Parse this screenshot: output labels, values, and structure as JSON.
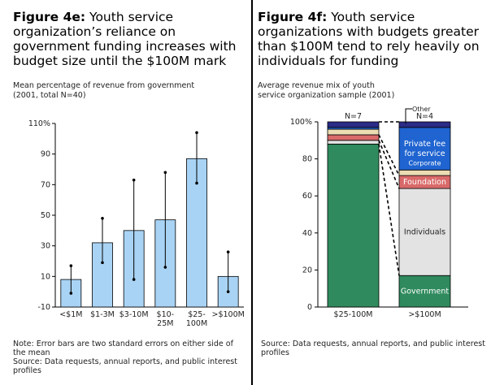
{
  "left": {
    "fig_label": "Figure 4e:",
    "title": "Youth service organization’s reliance on government funding increases with budget size until the $100M mark",
    "subtitle_1": "Mean percentage of revenue from government",
    "subtitle_2": "(2001, total N=40)",
    "note_1": "Note: Error bars are two standard errors on either side of",
    "note_2": "the mean",
    "source_1": "Source: Data requests, annual reports, and public interest",
    "source_2": "profiles"
  },
  "right": {
    "fig_label": "Figure 4f:",
    "title": "Youth service organizations with budgets greater than $100M tend to rely heavily on individuals for funding",
    "subtitle_1": "Average revenue mix of youth",
    "subtitle_2": "service organization sample (2001)",
    "source_1": "Source: Data requests, annual reports, and public interest",
    "source_2": "profiles"
  },
  "chart_data": [
    {
      "type": "bar",
      "categories": [
        "<$1M",
        "$1-3M",
        "$3-10M",
        "$10-25M",
        "$25-100M",
        ">$100M"
      ],
      "category_lines": [
        [
          "<$1M"
        ],
        [
          "$1-3M"
        ],
        [
          "$3-10M"
        ],
        [
          "$10-",
          "25M"
        ],
        [
          "$25-",
          "100M"
        ],
        [
          ">$100M"
        ]
      ],
      "values": [
        8,
        32,
        40,
        47,
        87,
        10
      ],
      "error_low": [
        -1,
        19,
        8,
        16,
        71,
        0
      ],
      "error_high": [
        17,
        48,
        73,
        78,
        104,
        26
      ],
      "ylim": [
        -10,
        110
      ],
      "yticks": [
        -10,
        10,
        30,
        50,
        70,
        90,
        110
      ],
      "ytick_labels": [
        "-10",
        "10",
        "30",
        "50",
        "70",
        "90",
        "110%"
      ],
      "bar_color": "#a9d3f4"
    },
    {
      "type": "bar",
      "stacked": true,
      "categories": [
        "$25-100M",
        ">$100M"
      ],
      "n_labels": [
        "N=7",
        "N=4"
      ],
      "ylim": [
        0,
        100
      ],
      "yticks": [
        0,
        20,
        40,
        60,
        80,
        100
      ],
      "ytick_labels": [
        "0",
        "20",
        "40",
        "60",
        "80",
        "100%"
      ],
      "segments": [
        {
          "key": "government",
          "label": "Government",
          "color": "#2f8a5e",
          "values": [
            88,
            17
          ]
        },
        {
          "key": "individuals",
          "label": "Individuals",
          "color": "#e3e3e3",
          "values": [
            2,
            47
          ]
        },
        {
          "key": "foundation",
          "label": "Foundation",
          "color": "#d96a6a",
          "values": [
            3,
            7
          ]
        },
        {
          "key": "corporate",
          "label": "Corporate",
          "color": "#ecdcb4",
          "values": [
            3,
            3
          ]
        },
        {
          "key": "private_fee",
          "label": "Private fee for service",
          "color": "#1f64d0",
          "values": [
            1,
            23
          ]
        },
        {
          "key": "other",
          "label": "Other",
          "color": "#2b2b88",
          "values": [
            3,
            3
          ]
        }
      ],
      "other_label": "Other",
      "private_fee_lines": [
        "Private fee",
        "for service"
      ]
    }
  ]
}
